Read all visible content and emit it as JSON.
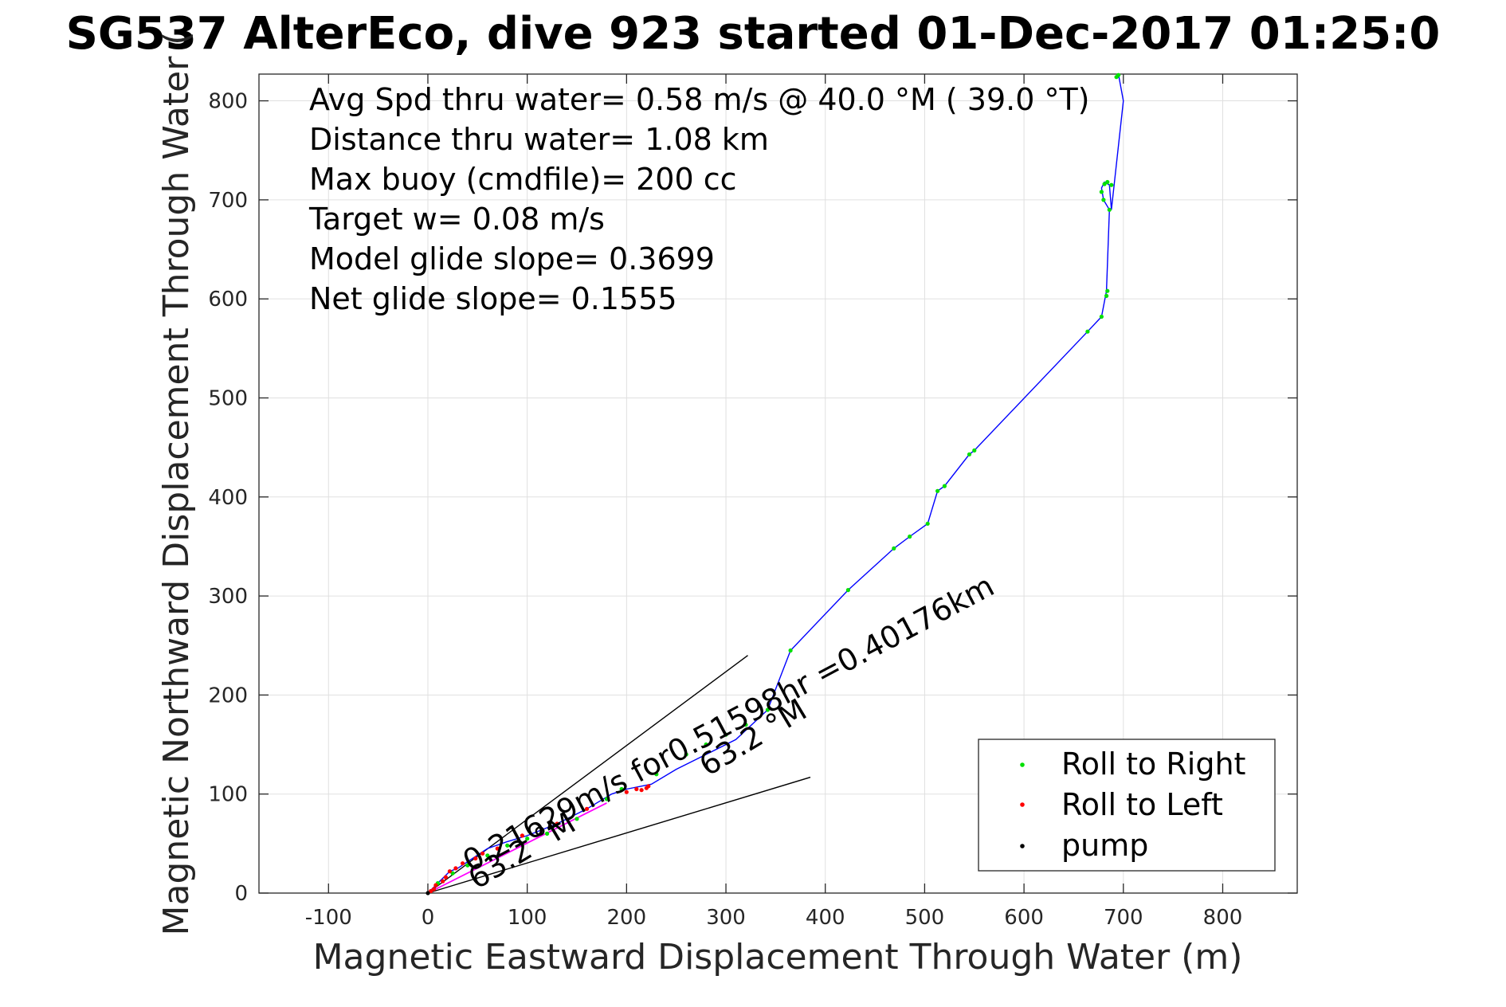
{
  "chart_data": {
    "type": "scatter",
    "title": "SG537 AlterEco, dive 923 started 01-Dec-2017 01:25:0",
    "xlabel": "Magnetic Eastward Displacement Through Water (m)",
    "ylabel": "Magnetic Northward Displacement Through Water (",
    "xlim": [
      -170,
      875
    ],
    "ylim": [
      0,
      827
    ],
    "xticks": [
      -100,
      0,
      100,
      200,
      300,
      400,
      500,
      600,
      700,
      800
    ],
    "yticks": [
      0,
      100,
      200,
      300,
      400,
      500,
      600,
      700,
      800
    ],
    "grid": true,
    "legend_position": "bottom-right",
    "annotations": [
      "Avg Spd thru water=  0.58 m/s @  40.0 °M ( 39.0 °T)",
      "Distance thru water=  1.08 km",
      "Max buoy (cmdfile)= 200 cc",
      "Target w= 0.08 m/s",
      "Model glide slope= 0.3699",
      "Net glide slope= 0.1555"
    ],
    "current_label": "0.21629m/s for0.51598hr =0.40176km",
    "bearing_labels": [
      "63.2 °M",
      "63.2 °M"
    ],
    "series": [
      {
        "name": "Roll to Right",
        "color": "#00e000",
        "x": [
          10,
          25,
          40,
          60,
          80,
          100,
          120,
          150,
          180,
          195,
          230,
          260,
          280,
          300,
          320,
          342,
          365,
          423,
          469,
          485,
          503,
          513,
          520,
          545,
          550,
          664,
          678,
          683,
          684,
          686,
          680,
          678,
          681,
          684,
          688,
          693,
          695
        ],
        "y": [
          10,
          20,
          28,
          38,
          48,
          55,
          60,
          75,
          95,
          105,
          120,
          140,
          150,
          160,
          170,
          185,
          245,
          306,
          348,
          360,
          373,
          406,
          411,
          443,
          447,
          567,
          582,
          603,
          608,
          690,
          700,
          708,
          716,
          718,
          715,
          824,
          826
        ]
      },
      {
        "name": "Roll to Left",
        "color": "#ff0000",
        "x": [
          3,
          6,
          8,
          15,
          18,
          22,
          28,
          35,
          48,
          55,
          70,
          95,
          130,
          160,
          200,
          210,
          215,
          220,
          222
        ],
        "y": [
          2,
          4,
          8,
          12,
          16,
          22,
          25,
          30,
          35,
          40,
          45,
          58,
          70,
          85,
          102,
          105,
          104,
          106,
          108
        ]
      },
      {
        "name": "pump",
        "color": "#000000",
        "x": [
          0
        ],
        "y": [
          0
        ]
      }
    ],
    "track": {
      "color": "#0000ff",
      "x": [
        0,
        12,
        22,
        30,
        45,
        60,
        80,
        100,
        130,
        160,
        185,
        200,
        225,
        250,
        280,
        310,
        342,
        365,
        423,
        469,
        485,
        503,
        513,
        520,
        545,
        550,
        664,
        678,
        683,
        686,
        680,
        678,
        681,
        686,
        688,
        700,
        695
      ],
      "y": [
        0,
        12,
        22,
        25,
        35,
        45,
        52,
        58,
        70,
        85,
        100,
        105,
        110,
        125,
        140,
        155,
        185,
        245,
        306,
        348,
        360,
        373,
        406,
        411,
        443,
        447,
        567,
        582,
        608,
        690,
        700,
        712,
        718,
        715,
        690,
        800,
        827
      ]
    },
    "current_track": {
      "color": "#ff00ff",
      "x": [
        0,
        180
      ],
      "y": [
        0,
        91
      ]
    },
    "bearing_lines": [
      {
        "x": [
          0,
          322
        ],
        "y": [
          0,
          240
        ]
      },
      {
        "x": [
          0,
          385
        ],
        "y": [
          0,
          117
        ]
      }
    ]
  }
}
